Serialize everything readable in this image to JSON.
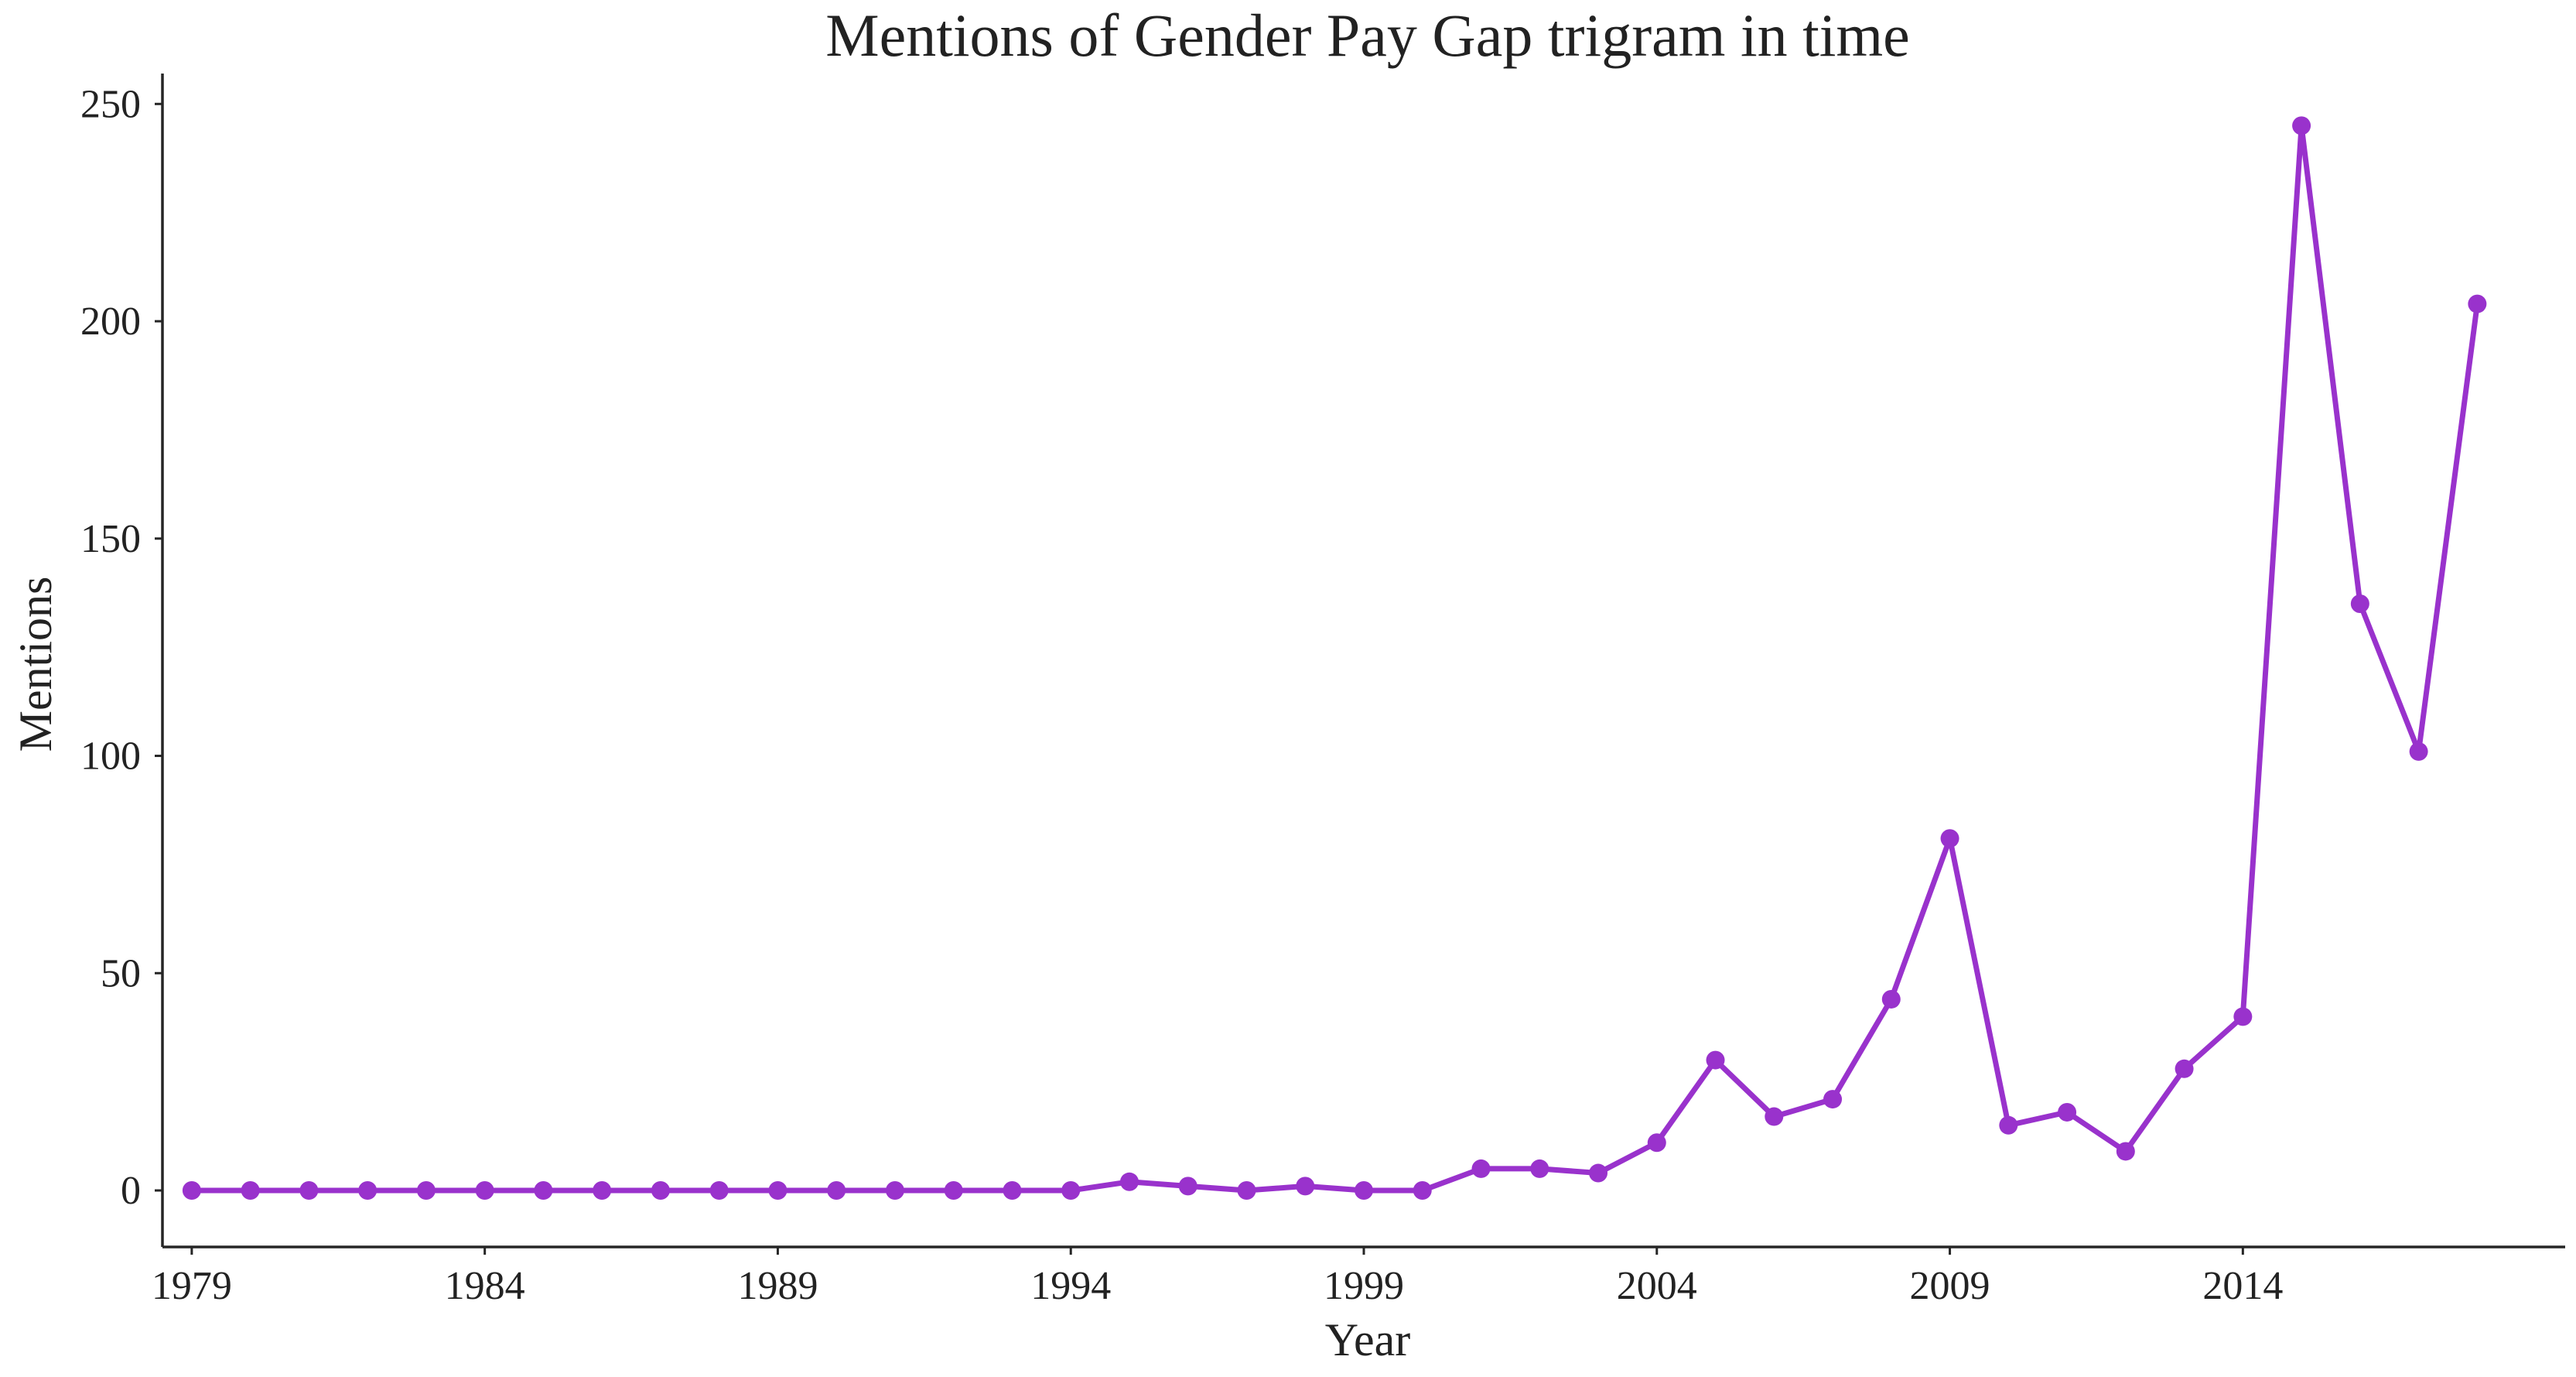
{
  "chart_data": {
    "type": "line",
    "title": "Mentions of Gender Pay Gap trigram in time",
    "xlabel": "Year",
    "ylabel": "Mentions",
    "xlim": [
      1978.5,
      2019.5
    ],
    "ylim": [
      -13,
      257
    ],
    "x_ticks": [
      1979,
      1984,
      1989,
      1994,
      1999,
      2004,
      2009,
      2014
    ],
    "y_ticks": [
      0,
      50,
      100,
      150,
      200,
      250
    ],
    "grid": false,
    "legend": "none",
    "color": "#9932CC",
    "marker": "circle",
    "series": [
      {
        "x": [
          1979,
          1980,
          1981,
          1982,
          1983,
          1984,
          1985,
          1986,
          1987,
          1988,
          1989,
          1990,
          1991,
          1992,
          1993,
          1994,
          1995,
          1996,
          1997,
          1998,
          1999,
          2000,
          2001,
          2002,
          2003,
          2004,
          2005,
          2006,
          2007,
          2008,
          2009,
          2010,
          2011,
          2012,
          2013,
          2014,
          2015,
          2016,
          2017,
          2018
        ],
        "values": [
          0,
          0,
          0,
          0,
          0,
          0,
          0,
          0,
          0,
          0,
          0,
          0,
          0,
          0,
          0,
          0,
          2,
          1,
          0,
          1,
          0,
          0,
          5,
          5,
          4,
          11,
          30,
          17,
          21,
          44,
          81,
          15,
          18,
          9,
          28,
          40,
          245,
          135,
          101,
          204
        ]
      }
    ]
  }
}
